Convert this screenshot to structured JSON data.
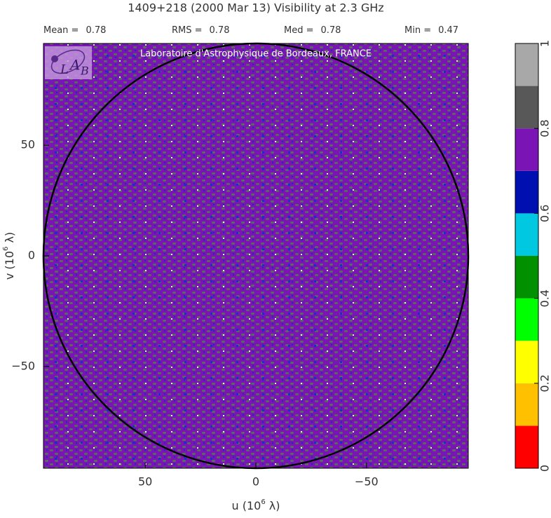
{
  "chart_data": {
    "type": "uv-map",
    "title": "1409+218  (2000 Mar 13)   Visibility at  2.3 GHz",
    "stats": [
      {
        "label": "Mean =",
        "value": 0.78
      },
      {
        "label": "RMS =",
        "value": 0.78
      },
      {
        "label": "Med =",
        "value": 0.78
      },
      {
        "label": "Min =",
        "value": 0.47
      }
    ],
    "annotation": "Laboratoire d'Astrophysique de Bordeaux, FRANCE",
    "logo": [
      "L",
      "A",
      "B"
    ],
    "x_label": {
      "text": "u  (10",
      "sup": "6",
      "unit": " λ)"
    },
    "y_label": {
      "text": "v  (10",
      "sup": "6",
      "unit": " λ)"
    },
    "xlim": [
      96,
      -96
    ],
    "xticks": [
      50,
      0,
      {
        "value": -50,
        "label": "−50"
      }
    ],
    "ylim": [
      -96,
      96
    ],
    "yticks": [
      50,
      0,
      {
        "value": -50,
        "label": "−50"
      }
    ],
    "background_color": "#7a14b4",
    "colorbar": {
      "bounds": [
        0,
        0.1,
        0.2,
        0.3,
        0.4,
        0.5,
        0.6,
        0.7,
        0.8,
        0.9,
        1
      ],
      "colors": [
        "#ff0000",
        "#ffc000",
        "#ffff00",
        "#00ff00",
        "#009000",
        "#00c8e0",
        "#0010b0",
        "#7a14b4",
        "#585858",
        "#a8a8a8"
      ],
      "ticks": [
        0,
        0.2,
        0.4,
        0.6,
        0.8,
        1
      ]
    }
  }
}
